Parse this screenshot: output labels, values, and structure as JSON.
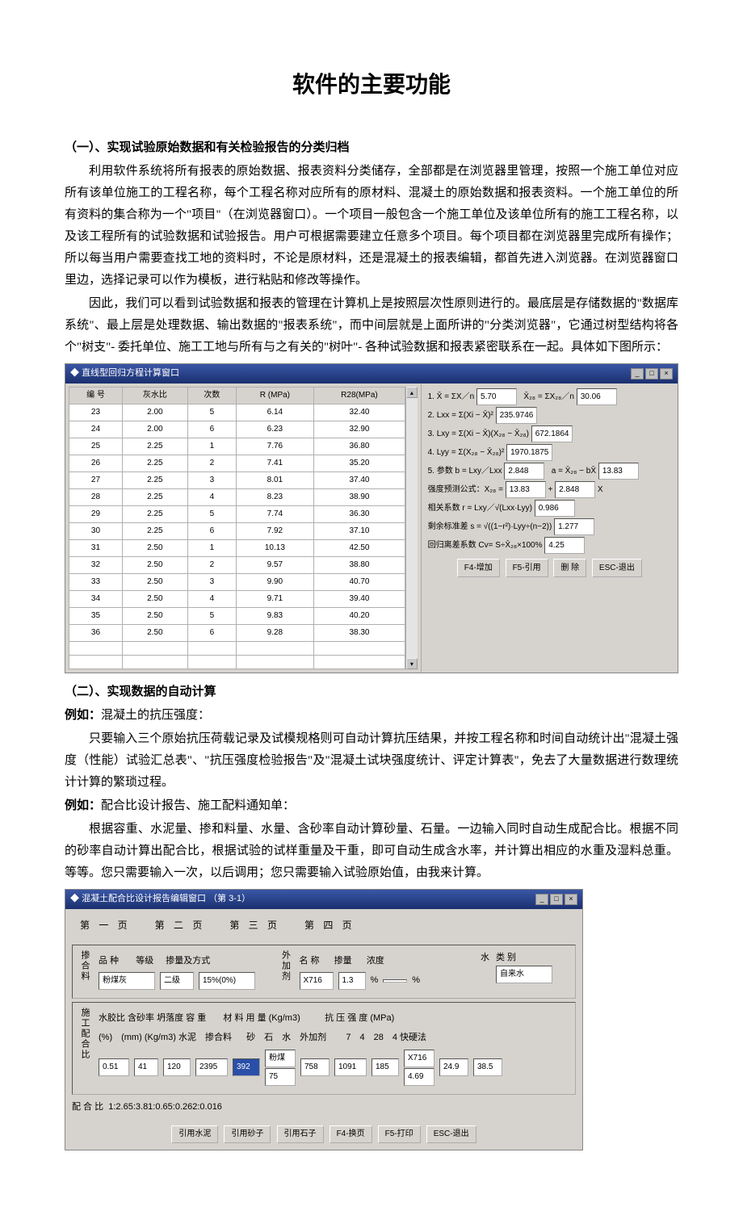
{
  "title": "软件的主要功能",
  "sec1": {
    "heading": "（一）、实现试验原始数据和有关检验报告的分类归档",
    "p1": "利用软件系统将所有报表的原始数据、报表资料分类储存，全部都是在浏览器里管理，按照一个施工单位对应所有该单位施工的工程名称，每个工程名称对应所有的原材料、混凝土的原始数据和报表资料。一个施工单位的所有资料的集合称为一个\"项目\"（在浏览器窗口）。一个项目一般包含一个施工单位及该单位所有的施工工程名称，以及该工程所有的试验数据和试验报告。用户可根据需要建立任意多个项目。每个项目都在浏览器里完成所有操作；所以每当用户需要查找工地的资料时，不论是原材料，还是混凝土的报表编辑，都首先进入浏览器。在浏览器窗口里边，选择记录可以作为模板，进行粘贴和修改等操作。",
    "p2": "因此，我们可以看到试验数据和报表的管理在计算机上是按照层次性原则进行的。最底层是存储数据的\"数据库系统\"、最上层是处理数据、输出数据的\"报表系统\"，而中间层就是上面所讲的\"分类浏览器\"，它通过树型结构将各个\"树支\"- 委托单位、施工工地与所有与之有关的\"树叶\"- 各种试验数据和报表紧密联系在一起。具体如下图所示："
  },
  "fig1": {
    "title": "直线型回归方程计算窗口",
    "columns": [
      "编 号",
      "灰水比",
      "次数",
      "R (MPa)",
      "R28(MPa)"
    ],
    "rows": [
      [
        "23",
        "2.00",
        "5",
        "6.14",
        "32.40"
      ],
      [
        "24",
        "2.00",
        "6",
        "6.23",
        "32.90"
      ],
      [
        "25",
        "2.25",
        "1",
        "7.76",
        "36.80"
      ],
      [
        "26",
        "2.25",
        "2",
        "7.41",
        "35.20"
      ],
      [
        "27",
        "2.25",
        "3",
        "8.01",
        "37.40"
      ],
      [
        "28",
        "2.25",
        "4",
        "8.23",
        "38.90"
      ],
      [
        "29",
        "2.25",
        "5",
        "7.74",
        "36.30"
      ],
      [
        "30",
        "2.25",
        "6",
        "7.92",
        "37.10"
      ],
      [
        "31",
        "2.50",
        "1",
        "10.13",
        "42.50"
      ],
      [
        "32",
        "2.50",
        "2",
        "9.57",
        "38.80"
      ],
      [
        "33",
        "2.50",
        "3",
        "9.90",
        "40.70"
      ],
      [
        "34",
        "2.50",
        "4",
        "9.71",
        "39.40"
      ],
      [
        "35",
        "2.50",
        "5",
        "9.83",
        "40.20"
      ],
      [
        "36",
        "2.50",
        "6",
        "9.28",
        "38.30"
      ]
    ],
    "formulas": {
      "f1_label": "1. X̄ = ΣX／n",
      "f1_v1": "5.70",
      "f1b_label": "X̄₂₈ = ΣX₂₈／n",
      "f1_v2": "30.06",
      "f2_label": "2. Lxx = Σ(Xi − X̄)²",
      "f2_v": "235.9746",
      "f3_label": "3. Lxy = Σ(Xi − X̄)(X₂₈ − X̄₂₈)",
      "f3_v": "672.1864",
      "f4_label": "4. Lyy = Σ(X₂₈ − X̄₂₈)²",
      "f4_v": "1970.1875",
      "f5_label": "5. 参数 b = Lxy／Lxx",
      "f5_v1": "2.848",
      "f5b_label": "a = X̄₂₈ − bX̄",
      "f5_v2": "13.83",
      "f6_label": "强度预测公式：X₂₈ =",
      "f6_v1": "13.83",
      "f6_plus": "+",
      "f6_v2": "2.848",
      "f6_suffix": "X",
      "f7_label": "相关系数 r = Lxy／√(Lxx·Lyy)",
      "f7_v": "0.986",
      "f8_label": "剩余标准差 s = √((1−r²)·Lyy÷(n−2))",
      "f8_v": "1.277",
      "f9_label": "回归离差系数 Cv= S÷X̄₂₈×100%",
      "f9_v": "4.25"
    },
    "buttons": [
      "F4-增加",
      "F5-引用",
      "删 除",
      "ESC-退出"
    ]
  },
  "sec2": {
    "heading": "（二）、实现数据的自动计算",
    "ex1_label": "例如：",
    "ex1_title": "混凝土的抗压强度：",
    "ex1_p": "只要输入三个原始抗压荷载记录及试模规格则可自动计算抗压结果，并按工程名称和时间自动统计出\"混凝土强度（性能）试验汇总表\"、\"抗压强度检验报告\"及\"混凝土试块强度统计、评定计算表\"，免去了大量数据进行数理统计计算的繁琐过程。",
    "ex2_label": "例如：",
    "ex2_title": "配合比设计报告、施工配料通知单：",
    "ex2_p": "根据容重、水泥量、掺和料量、水量、含砂率自动计算砂量、石量。一边输入同时自动生成配合比。根据不同的砂率自动计算出配合比，根据试验的试样重量及干重，即可自动生成含水率，并计算出相应的水重及湿料总重。等等。您只需要输入一次，以后调用；您只需要输入试验原始值，由我来计算。"
  },
  "fig2": {
    "title": "混凝土配合比设计报告编辑窗口  （第 3-1）",
    "tabs": [
      "第 一 页",
      "第 二 页",
      "第 三 页",
      "第 四 页"
    ],
    "block_a": {
      "side": "掺合料",
      "hdrs": [
        "品 种",
        "等级",
        "掺量及方式"
      ],
      "v_kind": "粉煤灰",
      "v_grade": "二级",
      "v_amount": "15%(0%)",
      "side2": "外加剂",
      "hdrs2": [
        "名 称",
        "掺量",
        "浓度"
      ],
      "v_name": "X716",
      "v_amt2": "1.3",
      "u1": "%",
      "u2": "%",
      "water_label": "水",
      "kind_label": "类 别",
      "water_v": "自来水"
    },
    "block_b": {
      "side": "施工配合比",
      "top_labels": "水胶比  含砂率 坍落度 容 重",
      "sub_labels": "(%)　(mm) (Kg/m3) 水泥　掺合料",
      "mat_label": "材 料 用 量 (Kg/m3)",
      "mat_cols": "砂　石　水　外加剂",
      "str_label": "抗 压 强 度 (MPa)",
      "str_cols": "7　4　28　4 快硬法",
      "v_wc": "0.51",
      "v_sand": "41",
      "v_slump": "120",
      "v_dens": "2395",
      "v_cem": "392",
      "v_mix1": "粉煤",
      "v_mix2": "75",
      "v_sha": "758",
      "v_shi": "1091",
      "v_shui": "185",
      "v_add1": "X716",
      "v_add2": "4.69",
      "v_s1": "24.9",
      "v_s2": "38.5"
    },
    "ratio_label": "配 合 比",
    "ratio_value": "1:2.65:3.81:0.65:0.262:0.016",
    "buttons": [
      "引用水泥",
      "引用砂子",
      "引用石子",
      "F4-换页",
      "F5-打印",
      "ESC-退出"
    ]
  }
}
